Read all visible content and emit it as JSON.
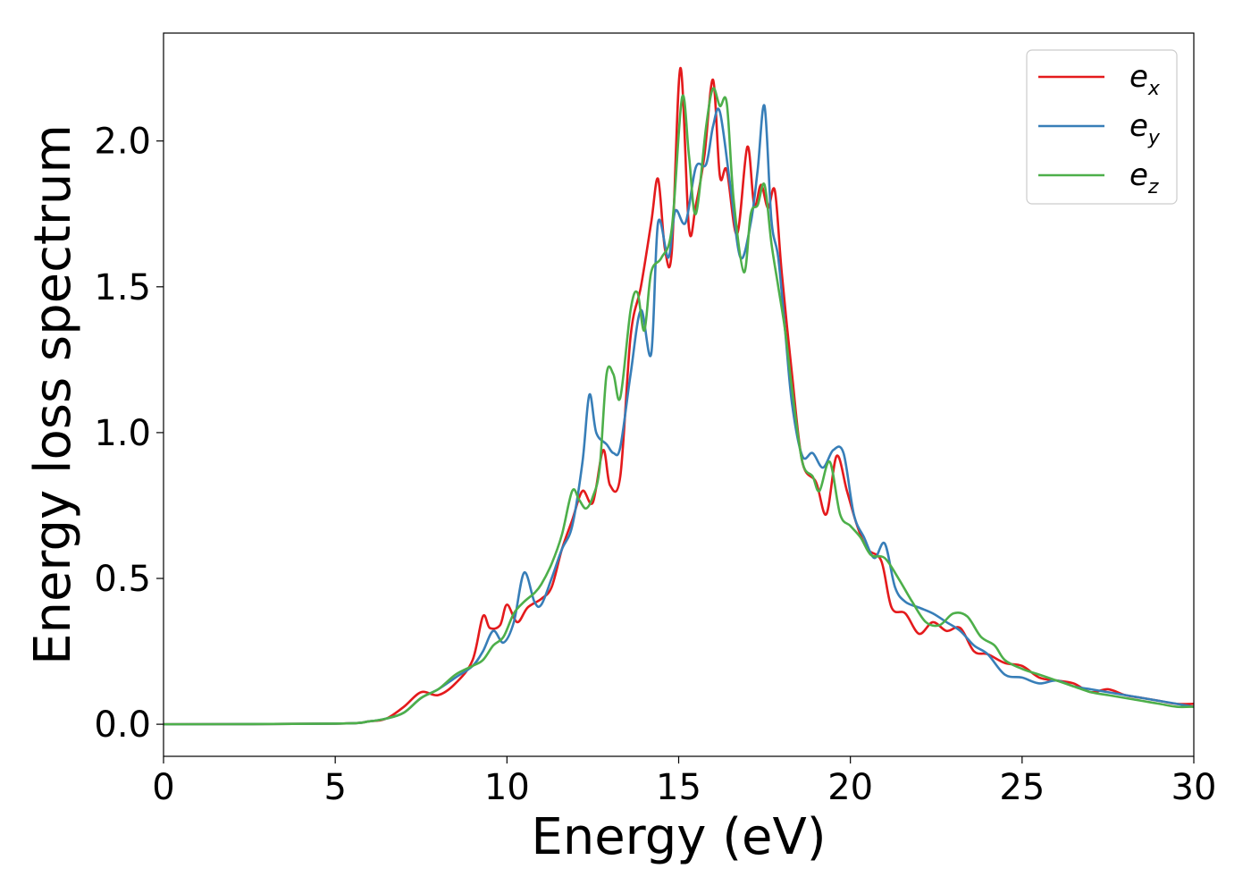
{
  "chart_data": {
    "type": "line",
    "xlabel": "Energy (eV)",
    "ylabel": "Energy loss spectrum",
    "xlim": [
      0,
      30
    ],
    "ylim": [
      -0.11,
      2.37
    ],
    "xticks": [
      0,
      5,
      10,
      15,
      20,
      25,
      30
    ],
    "xtick_labels": [
      "0",
      "5",
      "10",
      "15",
      "20",
      "25",
      "30"
    ],
    "yticks": [
      0.0,
      0.5,
      1.0,
      1.5,
      2.0
    ],
    "ytick_labels": [
      "0.0",
      "0.5",
      "1.0",
      "1.5",
      "2.0"
    ],
    "grid": false,
    "legend_position": "top-right",
    "series": [
      {
        "name": "e",
        "subscript": "x",
        "color": "#e41a1c",
        "x": [
          0,
          5,
          6,
          6.5,
          7.0,
          7.5,
          8.0,
          8.5,
          9.0,
          9.3,
          9.5,
          9.8,
          10.0,
          10.3,
          10.6,
          11.0,
          11.3,
          11.6,
          11.9,
          12.2,
          12.5,
          12.8,
          13.0,
          13.3,
          13.6,
          13.9,
          14.2,
          14.4,
          14.6,
          14.8,
          15.05,
          15.3,
          15.5,
          15.75,
          16.0,
          16.2,
          16.4,
          16.7,
          17.0,
          17.2,
          17.4,
          17.6,
          17.8,
          18.0,
          18.3,
          18.6,
          19.0,
          19.3,
          19.6,
          19.9,
          20.2,
          20.5,
          20.9,
          21.2,
          21.6,
          22.0,
          22.4,
          22.8,
          23.2,
          23.6,
          24.0,
          24.5,
          25.0,
          25.5,
          26.0,
          26.5,
          27.0,
          27.5,
          28.0,
          28.5,
          29.0,
          29.5,
          30.0
        ],
        "y": [
          0.0,
          0.002,
          0.01,
          0.02,
          0.06,
          0.11,
          0.1,
          0.14,
          0.22,
          0.37,
          0.33,
          0.34,
          0.41,
          0.35,
          0.4,
          0.43,
          0.47,
          0.6,
          0.7,
          0.8,
          0.76,
          0.94,
          0.82,
          0.85,
          1.33,
          1.5,
          1.72,
          1.87,
          1.63,
          1.62,
          2.25,
          1.7,
          1.78,
          1.95,
          2.21,
          1.88,
          1.9,
          1.68,
          1.98,
          1.78,
          1.85,
          1.77,
          1.83,
          1.55,
          1.2,
          0.9,
          0.83,
          0.72,
          0.92,
          0.8,
          0.68,
          0.6,
          0.56,
          0.4,
          0.38,
          0.31,
          0.35,
          0.32,
          0.33,
          0.25,
          0.24,
          0.21,
          0.2,
          0.16,
          0.15,
          0.14,
          0.11,
          0.12,
          0.1,
          0.09,
          0.08,
          0.07,
          0.07
        ]
      },
      {
        "name": "e",
        "subscript": "y",
        "color": "#377eb8",
        "x": [
          0,
          5,
          6,
          6.5,
          7.0,
          7.5,
          8.0,
          8.5,
          9.0,
          9.3,
          9.6,
          9.9,
          10.2,
          10.5,
          10.8,
          11.0,
          11.3,
          11.6,
          11.9,
          12.2,
          12.4,
          12.6,
          12.9,
          13.1,
          13.3,
          13.6,
          13.9,
          14.2,
          14.4,
          14.7,
          14.9,
          15.2,
          15.5,
          15.8,
          16.0,
          16.2,
          16.5,
          16.8,
          17.1,
          17.3,
          17.5,
          17.7,
          17.9,
          18.1,
          18.3,
          18.6,
          18.9,
          19.2,
          19.5,
          19.8,
          20.1,
          20.4,
          20.7,
          21.0,
          21.3,
          21.6,
          22.0,
          22.4,
          22.8,
          23.2,
          23.6,
          24.0,
          24.5,
          25.0,
          25.5,
          26.0,
          26.5,
          27.0,
          27.5,
          28.0,
          28.5,
          29.0,
          29.5,
          30.0
        ],
        "y": [
          0.0,
          0.002,
          0.01,
          0.02,
          0.04,
          0.09,
          0.12,
          0.16,
          0.2,
          0.25,
          0.32,
          0.28,
          0.35,
          0.52,
          0.42,
          0.41,
          0.5,
          0.6,
          0.68,
          0.9,
          1.13,
          1.0,
          0.96,
          0.93,
          0.95,
          1.2,
          1.42,
          1.27,
          1.72,
          1.6,
          1.76,
          1.72,
          1.91,
          1.92,
          2.05,
          2.1,
          1.85,
          1.6,
          1.72,
          1.9,
          2.12,
          1.73,
          1.6,
          1.35,
          1.1,
          0.92,
          0.93,
          0.88,
          0.94,
          0.93,
          0.72,
          0.64,
          0.57,
          0.62,
          0.47,
          0.42,
          0.4,
          0.38,
          0.35,
          0.32,
          0.27,
          0.24,
          0.17,
          0.16,
          0.14,
          0.15,
          0.13,
          0.12,
          0.11,
          0.1,
          0.09,
          0.08,
          0.07,
          0.06
        ]
      },
      {
        "name": "e",
        "subscript": "z",
        "color": "#4daf4a",
        "x": [
          0,
          5,
          6,
          6.5,
          7.0,
          7.5,
          8.0,
          8.5,
          9.0,
          9.3,
          9.6,
          9.9,
          10.2,
          10.5,
          10.8,
          11.0,
          11.3,
          11.6,
          11.9,
          12.1,
          12.3,
          12.5,
          12.7,
          12.9,
          13.1,
          13.3,
          13.6,
          13.8,
          14.0,
          14.2,
          14.5,
          14.8,
          15.1,
          15.3,
          15.5,
          15.8,
          16.0,
          16.2,
          16.4,
          16.6,
          16.9,
          17.1,
          17.3,
          17.5,
          17.7,
          17.9,
          18.1,
          18.3,
          18.6,
          18.9,
          19.1,
          19.4,
          19.7,
          20.0,
          20.3,
          20.6,
          21.0,
          21.4,
          21.8,
          22.2,
          22.6,
          23.0,
          23.4,
          23.8,
          24.2,
          24.5,
          25.0,
          25.5,
          26.0,
          26.5,
          27.0,
          27.5,
          28.0,
          28.5,
          29.0,
          29.5,
          30.0
        ],
        "y": [
          0.0,
          0.002,
          0.01,
          0.02,
          0.04,
          0.09,
          0.12,
          0.17,
          0.2,
          0.22,
          0.27,
          0.3,
          0.38,
          0.42,
          0.45,
          0.48,
          0.55,
          0.65,
          0.8,
          0.77,
          0.74,
          0.78,
          0.88,
          1.2,
          1.2,
          1.12,
          1.42,
          1.48,
          1.35,
          1.55,
          1.6,
          1.7,
          2.15,
          1.95,
          1.75,
          2.05,
          2.18,
          2.12,
          2.13,
          1.8,
          1.55,
          1.75,
          1.78,
          1.85,
          1.65,
          1.5,
          1.35,
          1.15,
          0.9,
          0.85,
          0.8,
          0.9,
          0.72,
          0.68,
          0.64,
          0.58,
          0.57,
          0.5,
          0.42,
          0.35,
          0.34,
          0.38,
          0.37,
          0.3,
          0.27,
          0.22,
          0.19,
          0.17,
          0.15,
          0.13,
          0.11,
          0.1,
          0.09,
          0.08,
          0.07,
          0.06,
          0.06
        ]
      }
    ]
  }
}
